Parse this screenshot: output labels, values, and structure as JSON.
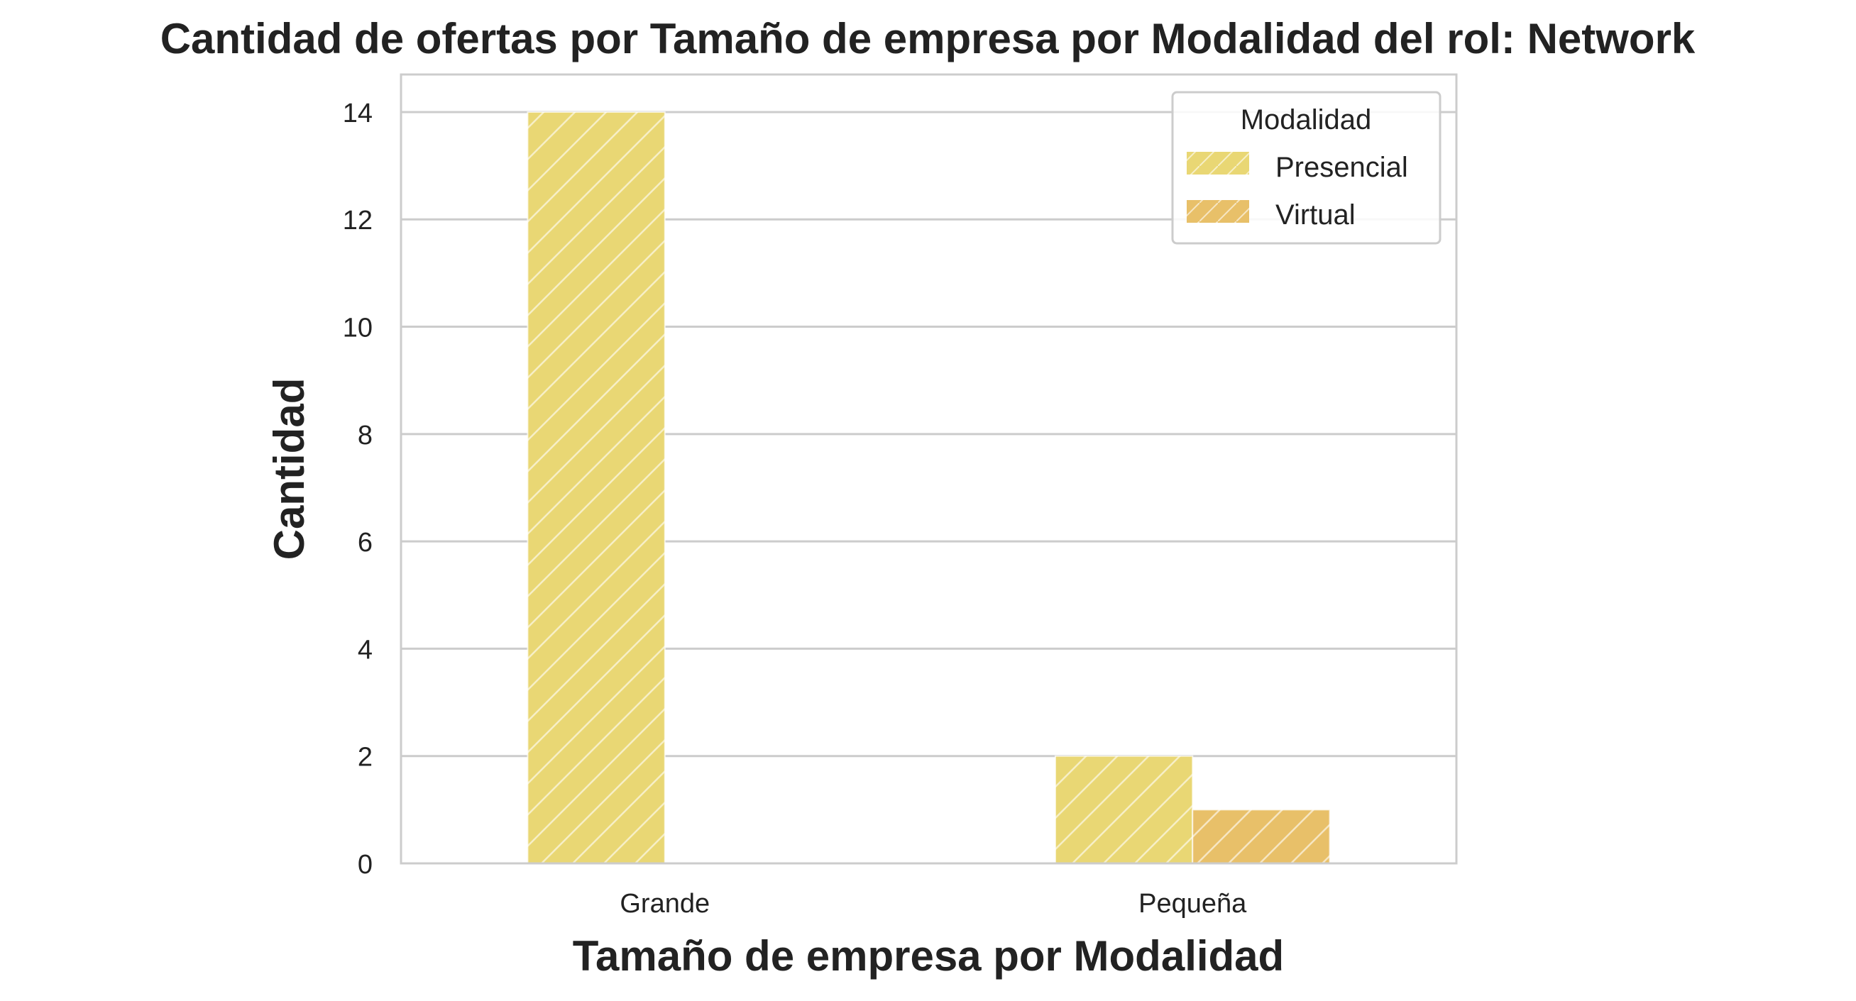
{
  "chart_data": {
    "type": "bar",
    "title": "Cantidad de ofertas por Tamaño de empresa por Modalidad del rol: Network",
    "xlabel": "Tamaño de empresa por Modalidad",
    "ylabel": "Cantidad",
    "categories": [
      "Grande",
      "Pequeña"
    ],
    "series": [
      {
        "name": "Presencial",
        "values": [
          14,
          2
        ],
        "color": "#e9d774"
      },
      {
        "name": "Virtual",
        "values": [
          0,
          1
        ],
        "color": "#e8c069"
      }
    ],
    "ylim": [
      0,
      14.7
    ],
    "yticks": [
      0,
      2,
      4,
      6,
      8,
      10,
      12,
      14
    ],
    "grid": true,
    "legend": {
      "title": "Modalidad",
      "placement": "top-right"
    },
    "hatch": "/"
  }
}
